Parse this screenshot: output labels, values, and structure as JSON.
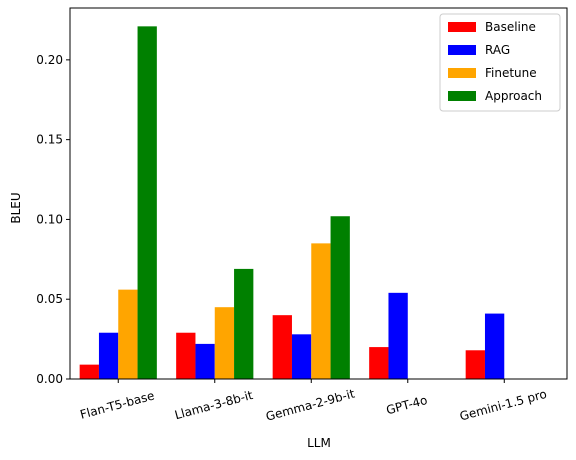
{
  "chart_data": {
    "type": "bar",
    "xlabel": "LLM",
    "ylabel": "BLEU",
    "categories": [
      "Flan-T5-base",
      "Llama-3-8b-it",
      "Gemma-2-9b-it",
      "GPT-4o",
      "Gemini-1.5 pro"
    ],
    "series": [
      {
        "name": "Baseline",
        "color": "#ff0000",
        "values": [
          0.009,
          0.029,
          0.04,
          0.02,
          0.018
        ]
      },
      {
        "name": "RAG",
        "color": "#0000ff",
        "values": [
          0.029,
          0.022,
          0.028,
          0.054,
          0.041
        ]
      },
      {
        "name": "Finetune",
        "color": "#ffa500",
        "values": [
          0.056,
          0.045,
          0.085,
          null,
          null
        ]
      },
      {
        "name": "Approach",
        "color": "#008000",
        "values": [
          0.221,
          0.069,
          0.102,
          null,
          null
        ]
      }
    ],
    "yticks": [
      "0.00",
      "0.05",
      "0.10",
      "0.15",
      "0.20"
    ],
    "ylim": [
      0,
      0.2325
    ],
    "legend_position": "top-right",
    "grid": false
  }
}
